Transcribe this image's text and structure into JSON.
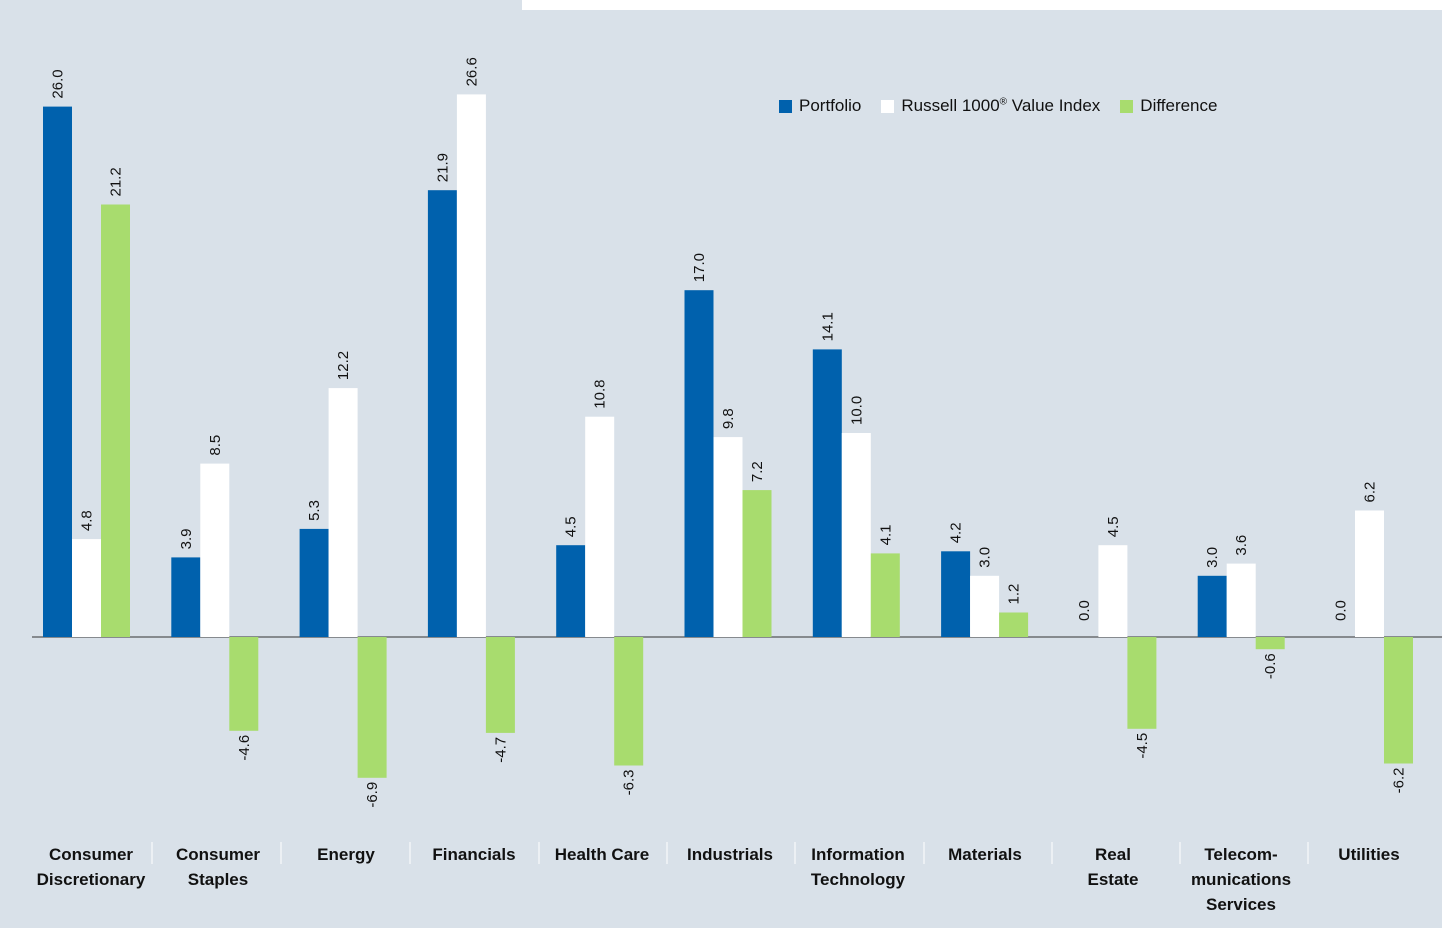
{
  "chart_data": {
    "type": "bar",
    "categories": [
      "Consumer\nDiscretionary",
      "Consumer\nStaples",
      "Energy",
      "Financials",
      "Health Care",
      "Industrials",
      "Information\nTechnology",
      "Materials",
      "Real\nEstate",
      "Telecom-\nmunications\nServices",
      "Utilities"
    ],
    "series": [
      {
        "name": "Portfolio",
        "color": "#0061ad",
        "values": [
          26.0,
          3.9,
          5.3,
          21.9,
          4.5,
          17.0,
          14.1,
          4.2,
          0.0,
          3.0,
          0.0
        ],
        "labels": [
          "26.0",
          "3.9",
          "5.3",
          "21.9",
          "4.5",
          "17.0",
          "14.1",
          "4.2",
          "0.0",
          "3.0",
          "0.0"
        ]
      },
      {
        "name_prefix": "Russell 1000",
        "name_sup": "®",
        "name_suffix": " Value Index",
        "color": "#ffffff",
        "values": [
          4.8,
          8.5,
          12.2,
          26.6,
          10.8,
          9.8,
          10.0,
          3.0,
          4.5,
          3.6,
          6.2
        ],
        "labels": [
          "4.8",
          "8.5",
          "12.2",
          "26.6",
          "10.8",
          "9.8",
          "10.0",
          "3.0",
          "4.5",
          "3.6",
          "6.2"
        ]
      },
      {
        "name": "Difference",
        "color": "#a8dc6e",
        "values": [
          21.2,
          -4.6,
          -6.9,
          -4.7,
          -6.3,
          7.2,
          4.1,
          1.2,
          -4.5,
          -0.6,
          -6.2
        ],
        "labels": [
          "21.2",
          "-4.6",
          "-6.9",
          "-4.7",
          "-6.3",
          "7.2",
          "4.1",
          "1.2",
          "-4.5",
          "-0.6",
          "-6.2"
        ]
      }
    ],
    "legend_position": "top-right",
    "grid": false
  }
}
